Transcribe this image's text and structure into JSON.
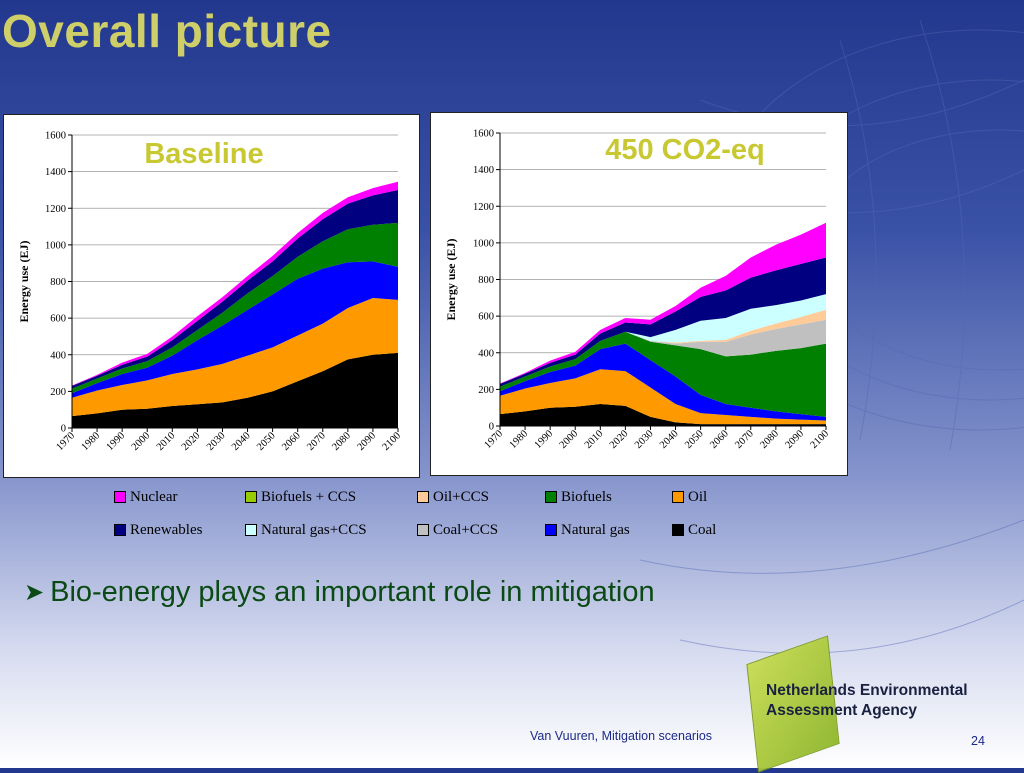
{
  "slide": {
    "title": "Overall picture",
    "bullet": "Bio-energy plays an important role in mitigation",
    "footer": "Van Vuuren, Mitigation scenarios",
    "page_number": "24",
    "logo_line1": "Netherlands Environmental",
    "logo_line2": "Assessment Agency"
  },
  "colors": {
    "Nuclear": "#ff00ff",
    "Renewables": "#000080",
    "Biofuels + CCS": "#99cc00",
    "Natural gas+CCS": "#ccffff",
    "Oil+CCS": "#ffcc99",
    "Coal+CCS": "#c0c0c0",
    "Biofuels": "#008000",
    "Natural gas": "#0000ff",
    "Oil": "#ff9900",
    "Coal": "#000000",
    "title": "#cfcf6a",
    "chart_title": "#c8c832",
    "bullet_text": "#0b4a14"
  },
  "legend": [
    {
      "label": "Nuclear",
      "swatch": "#ff00ff"
    },
    {
      "label": "Biofuels + CCS",
      "swatch": "#99cc00"
    },
    {
      "label": "Oil+CCS",
      "swatch": "#ffcc99"
    },
    {
      "label": "Biofuels",
      "swatch": "#008000"
    },
    {
      "label": "Oil",
      "swatch": "#ff9900"
    },
    {
      "label": "Renewables",
      "swatch": "#000080"
    },
    {
      "label": "Natural gas+CCS",
      "swatch": "#ccffff"
    },
    {
      "label": "Coal+CCS",
      "swatch": "#c0c0c0"
    },
    {
      "label": "Natural gas",
      "swatch": "#0000ff"
    },
    {
      "label": "Coal",
      "swatch": "#000000"
    }
  ],
  "chart_data": [
    {
      "type": "area",
      "stacked": true,
      "title": "Baseline",
      "ylabel": "Energy use (EJ)",
      "ylim": [
        0,
        1600
      ],
      "yticks": [
        0,
        200,
        400,
        600,
        800,
        1000,
        1200,
        1400,
        1600
      ],
      "xticks": [
        1970,
        1980,
        1990,
        2000,
        2010,
        2020,
        2030,
        2040,
        2050,
        2060,
        2070,
        2080,
        2090,
        2100
      ],
      "x": [
        1970,
        1980,
        1990,
        2000,
        2010,
        2020,
        2030,
        2040,
        2050,
        2060,
        2070,
        2080,
        2090,
        2100
      ],
      "series": [
        {
          "name": "Coal",
          "values": [
            65,
            80,
            100,
            105,
            120,
            130,
            140,
            165,
            200,
            255,
            310,
            375,
            400,
            410
          ]
        },
        {
          "name": "Oil",
          "values": [
            100,
            125,
            135,
            155,
            175,
            190,
            210,
            230,
            240,
            250,
            260,
            280,
            310,
            290
          ]
        },
        {
          "name": "Natural gas",
          "values": [
            25,
            40,
            60,
            70,
            100,
            160,
            210,
            250,
            290,
            310,
            300,
            250,
            200,
            180
          ]
        },
        {
          "name": "Oil+CCS",
          "values": [
            0,
            0,
            0,
            0,
            0,
            0,
            0,
            0,
            0,
            0,
            0,
            0,
            0,
            0
          ]
        },
        {
          "name": "Coal+CCS",
          "values": [
            0,
            0,
            0,
            0,
            0,
            0,
            0,
            0,
            0,
            0,
            0,
            0,
            0,
            0
          ]
        },
        {
          "name": "Natural gas+CCS",
          "values": [
            0,
            0,
            0,
            0,
            0,
            0,
            0,
            0,
            0,
            0,
            0,
            0,
            0,
            0
          ]
        },
        {
          "name": "Biofuels",
          "values": [
            25,
            25,
            30,
            35,
            45,
            55,
            70,
            90,
            100,
            120,
            150,
            180,
            200,
            240
          ]
        },
        {
          "name": "Biofuels + CCS",
          "values": [
            0,
            0,
            0,
            0,
            0,
            0,
            0,
            0,
            0,
            0,
            0,
            0,
            0,
            0
          ]
        },
        {
          "name": "Renewables",
          "values": [
            15,
            15,
            20,
            25,
            40,
            50,
            60,
            70,
            80,
            100,
            120,
            140,
            160,
            180
          ]
        },
        {
          "name": "Nuclear",
          "values": [
            2,
            5,
            12,
            15,
            20,
            25,
            25,
            25,
            30,
            30,
            35,
            35,
            40,
            45
          ]
        }
      ]
    },
    {
      "type": "area",
      "stacked": true,
      "title": "450 CO2-eq",
      "ylabel": "Energy use (EJ)",
      "ylim": [
        0,
        1600
      ],
      "yticks": [
        0,
        200,
        400,
        600,
        800,
        1000,
        1200,
        1400,
        1600
      ],
      "xticks": [
        1970,
        1980,
        1990,
        2000,
        2010,
        2020,
        2030,
        2040,
        2050,
        2060,
        2070,
        2080,
        2090,
        2100
      ],
      "x": [
        1970,
        1980,
        1990,
        2000,
        2010,
        2020,
        2030,
        2040,
        2050,
        2060,
        2070,
        2080,
        2090,
        2100
      ],
      "series": [
        {
          "name": "Coal",
          "values": [
            65,
            80,
            100,
            105,
            120,
            110,
            50,
            20,
            10,
            10,
            10,
            10,
            10,
            10
          ]
        },
        {
          "name": "Oil",
          "values": [
            100,
            125,
            135,
            155,
            190,
            190,
            160,
            100,
            60,
            50,
            40,
            30,
            25,
            20
          ]
        },
        {
          "name": "Natural gas",
          "values": [
            25,
            40,
            60,
            70,
            110,
            150,
            150,
            150,
            100,
            60,
            50,
            40,
            30,
            20
          ]
        },
        {
          "name": "Biofuels",
          "values": [
            25,
            25,
            30,
            35,
            45,
            65,
            100,
            170,
            250,
            260,
            290,
            330,
            360,
            400
          ]
        },
        {
          "name": "Biofuels + CCS",
          "values": [
            0,
            0,
            0,
            0,
            0,
            0,
            0,
            0,
            0,
            0,
            0,
            0,
            0,
            0
          ]
        },
        {
          "name": "Coal+CCS",
          "values": [
            0,
            0,
            0,
            0,
            0,
            0,
            5,
            10,
            40,
            80,
            110,
            120,
            130,
            130
          ]
        },
        {
          "name": "Oil+CCS",
          "values": [
            0,
            0,
            0,
            0,
            0,
            0,
            0,
            5,
            5,
            10,
            20,
            30,
            40,
            55
          ]
        },
        {
          "name": "Natural gas+CCS",
          "values": [
            0,
            0,
            0,
            0,
            0,
            0,
            20,
            70,
            110,
            120,
            120,
            100,
            90,
            85
          ]
        },
        {
          "name": "Renewables",
          "values": [
            15,
            15,
            20,
            25,
            40,
            50,
            70,
            100,
            130,
            150,
            170,
            190,
            200,
            200
          ]
        },
        {
          "name": "Nuclear",
          "values": [
            2,
            5,
            12,
            15,
            20,
            25,
            25,
            30,
            50,
            80,
            110,
            140,
            160,
            190
          ]
        }
      ]
    }
  ]
}
